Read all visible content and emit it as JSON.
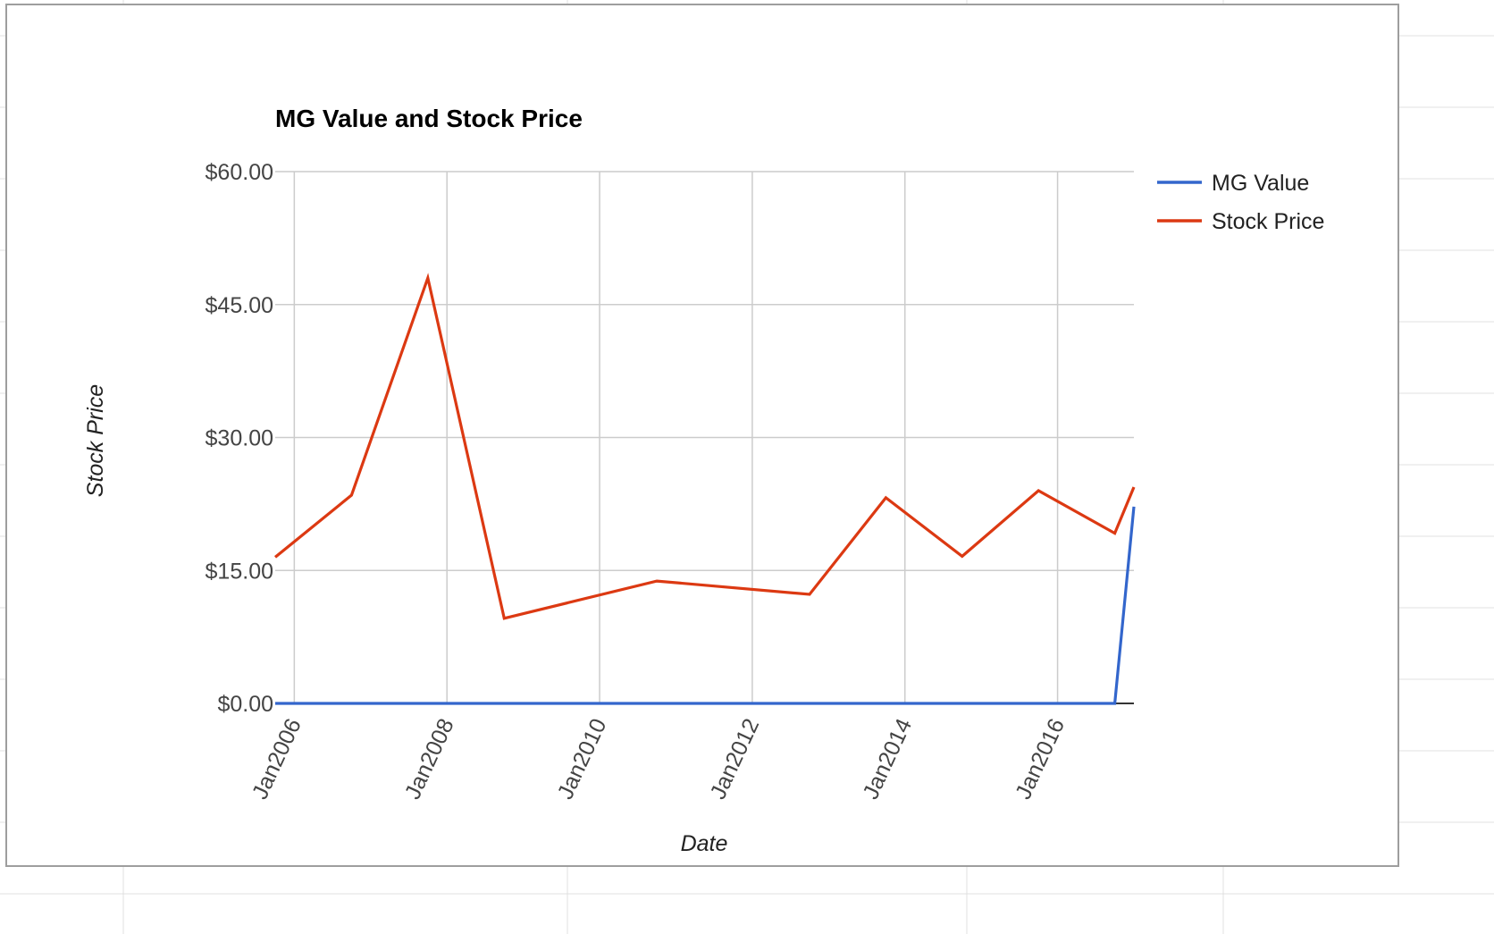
{
  "chart_data": {
    "type": "line",
    "title": "MG Value and Stock Price",
    "xlabel": "Date",
    "ylabel": "Stock Price",
    "x_ticks": [
      "Jan2006",
      "Jan2008",
      "Jan2010",
      "Jan2012",
      "Jan2014",
      "Jan2016"
    ],
    "x_range": [
      "2005-10-01",
      "2017-01-01"
    ],
    "ylim": [
      0,
      60
    ],
    "y_ticks": [
      "$0.00",
      "$15.00",
      "$30.00",
      "$45.00",
      "$60.00"
    ],
    "y_tick_values": [
      0,
      15,
      30,
      45,
      60
    ],
    "grid": true,
    "legend_position": "right",
    "series": [
      {
        "name": "MG Value",
        "color": "#3366cc",
        "points": [
          {
            "x": "2005-10-01",
            "y": 0
          },
          {
            "x": "2016-10-01",
            "y": 0
          },
          {
            "x": "2017-01-01",
            "y": 22.2
          }
        ]
      },
      {
        "name": "Stock Price",
        "color": "#dc3912",
        "points": [
          {
            "x": "2005-10-01",
            "y": 16.5
          },
          {
            "x": "2006-10-01",
            "y": 23.5
          },
          {
            "x": "2007-10-01",
            "y": 48
          },
          {
            "x": "2008-10-01",
            "y": 9.6
          },
          {
            "x": "2010-10-01",
            "y": 13.8
          },
          {
            "x": "2012-10-01",
            "y": 12.3
          },
          {
            "x": "2013-10-01",
            "y": 23.2
          },
          {
            "x": "2014-10-01",
            "y": 16.6
          },
          {
            "x": "2015-10-01",
            "y": 24
          },
          {
            "x": "2016-10-01",
            "y": 19.2
          },
          {
            "x": "2017-01-01",
            "y": 24.4
          }
        ]
      }
    ]
  }
}
